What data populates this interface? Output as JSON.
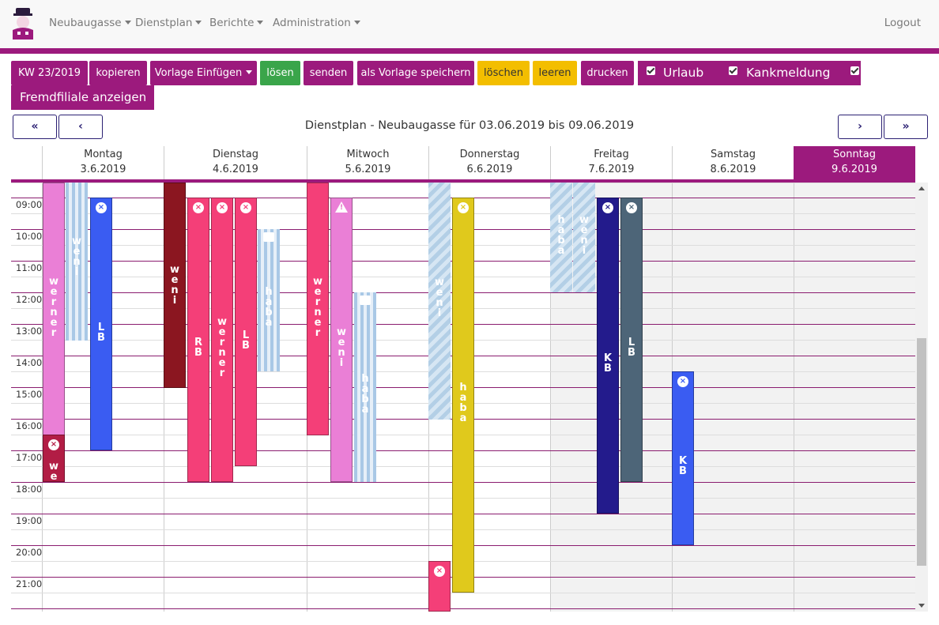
{
  "nav": {
    "menu": [
      "Neubaugasse",
      "Dienstplan",
      "Berichte",
      "Administration"
    ],
    "logout": "Logout"
  },
  "toolbar": {
    "week": "KW 23/2019",
    "kopieren": "kopieren",
    "vorlage_einfuegen": "Vorlage Einfügen",
    "loesen": "lösen",
    "senden": "senden",
    "als_vorlage": "als Vorlage speichern",
    "loeschen": "löschen",
    "leeren": "leeren",
    "drucken": "drucken",
    "urlaub": "Urlaub",
    "krankmeldung": "Kankmeldung",
    "fremdfiliale": "Fremdfiliale anzeigen"
  },
  "title": "Dienstplan - Neubaugasse für 03.06.2019 bis 09.06.2019",
  "days": [
    {
      "name": "Montag",
      "date": "3.6.2019"
    },
    {
      "name": "Dienstag",
      "date": "4.6.2019"
    },
    {
      "name": "Mitwoch",
      "date": "5.6.2019"
    },
    {
      "name": "Donnerstag",
      "date": "6.6.2019"
    },
    {
      "name": "Freitag",
      "date": "7.6.2019"
    },
    {
      "name": "Samstag",
      "date": "8.6.2019"
    },
    {
      "name": "Sonntag",
      "date": "9.6.2019"
    }
  ],
  "hours": [
    "09:00",
    "10:00",
    "11:00",
    "12:00",
    "13:00",
    "14:00",
    "15:00",
    "16:00",
    "17:00",
    "18:00",
    "19:00",
    "20:00",
    "21:00"
  ],
  "colors": {
    "purple": "#9c1a7d",
    "green": "#3aa54a",
    "yellow": "#f3be00"
  },
  "shifts": {
    "mo_werner": "werner",
    "mo_weni": "weni",
    "mo_lb": "LB",
    "mo_we": "we",
    "di_weni": "weni",
    "di_rb": "RB",
    "di_werner": "werner",
    "di_lb": "LB",
    "di_haba": "haba",
    "mi_werner": "werner",
    "mi_weni": "weni",
    "mi_haba": "haba",
    "do_weni": "weni",
    "do_haba": "haba",
    "fr_haba": "haba",
    "fr_weni": "weni",
    "fr_kb": "KB",
    "fr_lb": "LB",
    "sa_kb": "KB"
  }
}
